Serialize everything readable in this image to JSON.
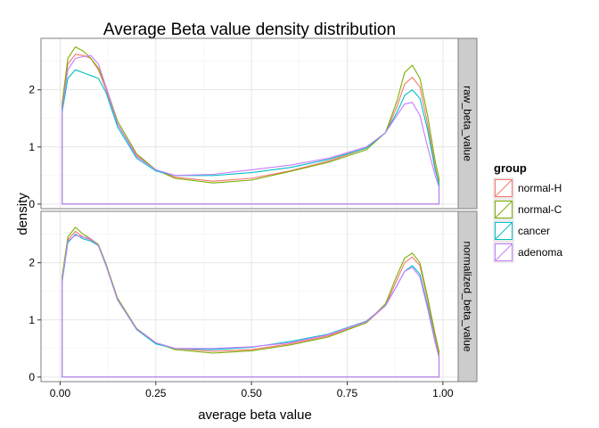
{
  "title": "Average Beta value density distribution",
  "xlabel": "average beta value",
  "ylabel": "density",
  "legend": {
    "title": "group",
    "items": [
      {
        "label": "normal-H",
        "color": "#F8766D"
      },
      {
        "label": "normal-C",
        "color": "#7CAE00"
      },
      {
        "label": "cancer",
        "color": "#00BFC4"
      },
      {
        "label": "adenoma",
        "color": "#C77CFF"
      }
    ]
  },
  "chart_data": {
    "type": "line",
    "title": "Average Beta value density distribution",
    "xlabel": "average beta value",
    "ylabel": "density",
    "xlim": [
      -0.05,
      1.04
    ],
    "ylim": [
      -0.08,
      2.9
    ],
    "xticks": [
      0.0,
      0.25,
      0.5,
      0.75,
      1.0
    ],
    "xtick_labels": [
      "0.00",
      "0.25",
      "0.50",
      "0.75",
      "1.00"
    ],
    "yticks": [
      0,
      1,
      2
    ],
    "ytick_labels": [
      "0",
      "1",
      "2"
    ],
    "grid": true,
    "legend_position": "right",
    "facets": [
      {
        "strip": "raw_beta_value",
        "series": [
          {
            "name": "normal-H",
            "x": [
              0.005,
              0.02,
              0.04,
              0.06,
              0.08,
              0.1,
              0.12,
              0.15,
              0.2,
              0.25,
              0.3,
              0.4,
              0.5,
              0.6,
              0.7,
              0.8,
              0.85,
              0.88,
              0.9,
              0.92,
              0.94,
              0.96,
              0.98,
              0.99
            ],
            "y": [
              1.7,
              2.45,
              2.62,
              2.6,
              2.55,
              2.35,
              2.0,
              1.4,
              0.85,
              0.6,
              0.47,
              0.4,
              0.45,
              0.58,
              0.75,
              0.98,
              1.25,
              1.7,
              2.1,
              2.22,
              2.05,
              1.4,
              0.65,
              0.35
            ]
          },
          {
            "name": "normal-C",
            "x": [
              0.005,
              0.02,
              0.04,
              0.06,
              0.08,
              0.1,
              0.12,
              0.15,
              0.2,
              0.25,
              0.3,
              0.4,
              0.5,
              0.6,
              0.7,
              0.8,
              0.85,
              0.88,
              0.9,
              0.92,
              0.94,
              0.96,
              0.98,
              0.99
            ],
            "y": [
              1.75,
              2.55,
              2.75,
              2.68,
              2.55,
              2.38,
              2.05,
              1.45,
              0.88,
              0.6,
              0.45,
              0.37,
              0.42,
              0.57,
              0.73,
              0.95,
              1.25,
              1.8,
              2.3,
              2.43,
              2.2,
              1.55,
              0.75,
              0.45
            ]
          },
          {
            "name": "cancer",
            "x": [
              0.005,
              0.02,
              0.04,
              0.06,
              0.08,
              0.1,
              0.12,
              0.15,
              0.2,
              0.25,
              0.3,
              0.4,
              0.5,
              0.6,
              0.7,
              0.8,
              0.85,
              0.88,
              0.9,
              0.92,
              0.94,
              0.96,
              0.98,
              0.99
            ],
            "y": [
              1.6,
              2.2,
              2.35,
              2.3,
              2.25,
              2.2,
              1.95,
              1.35,
              0.8,
              0.58,
              0.5,
              0.5,
              0.55,
              0.64,
              0.78,
              0.98,
              1.25,
              1.6,
              1.9,
              2.0,
              1.85,
              1.3,
              0.6,
              0.35
            ]
          },
          {
            "name": "adenoma",
            "x": [
              0.005,
              0.02,
              0.04,
              0.06,
              0.08,
              0.1,
              0.12,
              0.15,
              0.2,
              0.25,
              0.3,
              0.4,
              0.5,
              0.6,
              0.7,
              0.8,
              0.85,
              0.88,
              0.9,
              0.92,
              0.94,
              0.96,
              0.98,
              0.99
            ],
            "y": [
              1.65,
              2.35,
              2.55,
              2.58,
              2.6,
              2.45,
              2.05,
              1.4,
              0.83,
              0.6,
              0.5,
              0.52,
              0.6,
              0.68,
              0.8,
              1.0,
              1.25,
              1.55,
              1.75,
              1.78,
              1.55,
              1.0,
              0.5,
              0.3
            ]
          }
        ]
      },
      {
        "strip": "normalized_beta_value",
        "series": [
          {
            "name": "normal-H",
            "x": [
              0.005,
              0.02,
              0.04,
              0.06,
              0.08,
              0.1,
              0.12,
              0.15,
              0.2,
              0.25,
              0.3,
              0.4,
              0.5,
              0.6,
              0.7,
              0.8,
              0.85,
              0.88,
              0.9,
              0.92,
              0.94,
              0.96,
              0.98,
              0.99
            ],
            "y": [
              1.7,
              2.4,
              2.55,
              2.45,
              2.4,
              2.3,
              1.95,
              1.35,
              0.85,
              0.6,
              0.5,
              0.45,
              0.48,
              0.58,
              0.72,
              0.95,
              1.25,
              1.7,
              2.0,
              2.1,
              1.95,
              1.35,
              0.7,
              0.4
            ]
          },
          {
            "name": "normal-C",
            "x": [
              0.005,
              0.02,
              0.04,
              0.06,
              0.08,
              0.1,
              0.12,
              0.15,
              0.2,
              0.25,
              0.3,
              0.4,
              0.5,
              0.6,
              0.7,
              0.8,
              0.85,
              0.88,
              0.9,
              0.92,
              0.94,
              0.96,
              0.98,
              0.99
            ],
            "y": [
              1.75,
              2.45,
              2.62,
              2.5,
              2.42,
              2.32,
              1.98,
              1.38,
              0.85,
              0.6,
              0.48,
              0.42,
              0.46,
              0.56,
              0.7,
              0.95,
              1.28,
              1.78,
              2.08,
              2.17,
              2.0,
              1.4,
              0.75,
              0.45
            ]
          },
          {
            "name": "cancer",
            "x": [
              0.005,
              0.02,
              0.04,
              0.06,
              0.08,
              0.1,
              0.12,
              0.15,
              0.2,
              0.25,
              0.3,
              0.4,
              0.5,
              0.6,
              0.7,
              0.8,
              0.85,
              0.88,
              0.9,
              0.92,
              0.94,
              0.96,
              0.98,
              0.99
            ],
            "y": [
              1.65,
              2.35,
              2.5,
              2.42,
              2.38,
              2.3,
              1.95,
              1.35,
              0.83,
              0.58,
              0.5,
              0.48,
              0.52,
              0.62,
              0.75,
              0.98,
              1.25,
              1.6,
              1.85,
              1.95,
              1.8,
              1.25,
              0.62,
              0.35
            ]
          },
          {
            "name": "adenoma",
            "x": [
              0.005,
              0.02,
              0.04,
              0.06,
              0.08,
              0.1,
              0.12,
              0.15,
              0.2,
              0.25,
              0.3,
              0.4,
              0.5,
              0.6,
              0.7,
              0.8,
              0.85,
              0.88,
              0.9,
              0.92,
              0.94,
              0.96,
              0.98,
              0.99
            ],
            "y": [
              1.68,
              2.38,
              2.48,
              2.45,
              2.42,
              2.3,
              1.95,
              1.35,
              0.84,
              0.6,
              0.5,
              0.5,
              0.53,
              0.6,
              0.74,
              0.97,
              1.25,
              1.6,
              1.85,
              1.92,
              1.75,
              1.2,
              0.6,
              0.35
            ]
          }
        ]
      }
    ]
  }
}
